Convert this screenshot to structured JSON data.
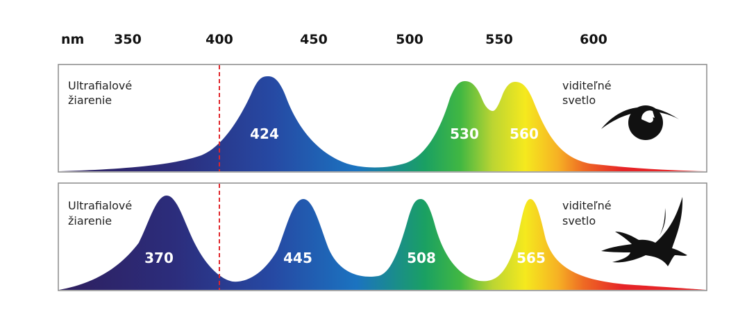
{
  "unit_label": "nm",
  "axis_ticks": [
    "350",
    "400",
    "450",
    "500",
    "550",
    "600"
  ],
  "panels": [
    {
      "id": "human",
      "left_label": [
        "Ultrafialové",
        "žiarenie"
      ],
      "right_label": [
        "viditeľné",
        "svetlo"
      ],
      "icon": "eye-icon",
      "peaks": [
        "424",
        "530",
        "560"
      ]
    },
    {
      "id": "bird",
      "left_label": [
        "Ultrafialové",
        "žiarenie"
      ],
      "right_label": [
        "viditeľné",
        "svetlo"
      ],
      "icon": "bird-icon",
      "peaks": [
        "370",
        "445",
        "508",
        "565"
      ]
    }
  ],
  "colors": {
    "uv_line": "#e0252a",
    "frame": "#8a8a8a",
    "spectrum": [
      "#2e1f5e",
      "#2c2d7c",
      "#2649a3",
      "#1b73c0",
      "#1aa063",
      "#41b742",
      "#bcd532",
      "#f5e91e",
      "#f6b224",
      "#ee6a24",
      "#e62427"
    ]
  }
}
